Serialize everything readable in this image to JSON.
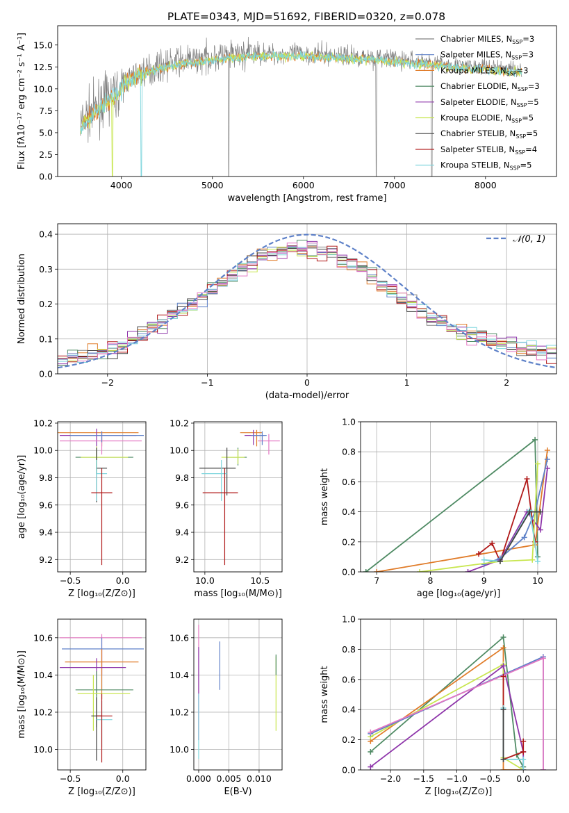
{
  "title": "PLATE=0343, MJD=51692, FIBERID=0320, z=0.078",
  "chart_data": [
    {
      "id": "spectrum",
      "type": "line",
      "xlabel": "wavelength [Angstrom, rest frame]",
      "ylabel": "Flux [fλ10⁻¹⁷ erg cm⁻² s⁻¹ A⁻¹]",
      "xlim": [
        3300,
        8780
      ],
      "ylim": [
        0,
        17.2
      ],
      "xticks": [
        "4000",
        "5000",
        "6000",
        "7000",
        "8000"
      ],
      "xtick_values": [
        4000,
        5000,
        6000,
        7000,
        8000
      ],
      "yticks": [
        "0.0",
        "2.5",
        "5.0",
        "7.5",
        "10.0",
        "12.5",
        "15.0"
      ],
      "ytick_values": [
        0,
        2.5,
        5,
        7.5,
        10,
        12.5,
        15
      ],
      "grid": false,
      "legend_position": "lower-right",
      "series": [
        {
          "name": "Chabrier MILES, N_SSP=3",
          "color": "#808080"
        },
        {
          "name": "Salpeter MILES, N_SSP=3",
          "color": "#5e81c8"
        },
        {
          "name": "Kroupa MILES, N_SSP=3",
          "color": "#e07b28"
        },
        {
          "name": "Chabrier ELODIE, N_SSP=3",
          "color": "#4e8a63"
        },
        {
          "name": "Salpeter ELODIE, N_SSP=5",
          "color": "#8e35aa"
        },
        {
          "name": "Kroupa ELODIE, N_SSP=5",
          "color": "#c8e650"
        },
        {
          "name": "Chabrier STELIB, N_SSP=5",
          "color": "#404040"
        },
        {
          "name": "Salpeter STELIB, N_SSP=4",
          "color": "#b01818"
        },
        {
          "name": "Kroupa STELIB, N_SSP=5",
          "color": "#7fd6dd"
        }
      ],
      "model_continuum": {
        "x": [
          3550,
          3650,
          3750,
          3850,
          3950,
          4050,
          4150,
          4250,
          4400,
          4600,
          4800,
          5000,
          5200,
          5400,
          5600,
          5800,
          6000,
          6200,
          6400,
          6600,
          6800,
          7000,
          7200,
          7400,
          7600,
          7800,
          8000,
          8200,
          8400
        ],
        "y": [
          6.0,
          7.0,
          8.0,
          9.0,
          9.5,
          11.0,
          11.5,
          12.0,
          12.5,
          13.0,
          13.3,
          13.6,
          13.8,
          14.0,
          14.0,
          14.0,
          14.0,
          13.9,
          13.8,
          13.7,
          13.6,
          13.4,
          13.2,
          13.0,
          12.8,
          12.6,
          12.5,
          12.3,
          12.2
        ]
      }
    },
    {
      "id": "residuals",
      "type": "bar",
      "xlabel": "(data-model)/error",
      "ylabel": "Normed distribution",
      "xlim": [
        -2.5,
        2.5
      ],
      "ylim": [
        0,
        0.43
      ],
      "xticks": [
        "−2",
        "−1",
        "0",
        "1",
        "2"
      ],
      "xtick_values": [
        -2,
        -1,
        0,
        1,
        2
      ],
      "yticks": [
        "0.0",
        "0.1",
        "0.2",
        "0.3",
        "0.4"
      ],
      "ytick_values": [
        0,
        0.1,
        0.2,
        0.3,
        0.4
      ],
      "grid": true,
      "legend_position": "top-right",
      "legend_label": "𝒩(0, 1)",
      "bin_edges_start": -2.5,
      "bin_width": 0.1,
      "histogram_envelope": [
        0.04,
        0.045,
        0.05,
        0.055,
        0.06,
        0.07,
        0.08,
        0.095,
        0.11,
        0.13,
        0.15,
        0.165,
        0.18,
        0.2,
        0.22,
        0.24,
        0.26,
        0.28,
        0.3,
        0.31,
        0.33,
        0.34,
        0.35,
        0.36,
        0.355,
        0.36,
        0.35,
        0.345,
        0.33,
        0.32,
        0.3,
        0.28,
        0.26,
        0.24,
        0.22,
        0.2,
        0.18,
        0.16,
        0.14,
        0.13,
        0.12,
        0.11,
        0.1,
        0.09,
        0.085,
        0.08,
        0.075,
        0.07,
        0.065,
        0.06
      ]
    },
    {
      "id": "age-vs-Z",
      "type": "scatter",
      "xlabel": "Z [log₁₀(Z/Z⊙)]",
      "ylabel": "age  [log₁₀(age/yr)]",
      "xlim": [
        -0.62,
        0.22
      ],
      "ylim": [
        9.11,
        10.21
      ],
      "xticks": [
        "−0.5",
        "0.0"
      ],
      "xtick_values": [
        -0.5,
        0
      ],
      "yticks": [
        "9.2",
        "9.4",
        "9.6",
        "9.8",
        "10.0",
        "10.2"
      ],
      "ytick_values": [
        9.2,
        9.4,
        9.6,
        9.8,
        10.0,
        10.2
      ],
      "grid": true,
      "points": [
        {
          "x": -0.2,
          "xerr": [
            0.45,
            0.35
          ],
          "y": 10.13,
          "yerr": [
            0.1,
            0.01
          ],
          "color": "#e07b28"
        },
        {
          "x": -0.25,
          "xerr": [
            0.35,
            0.38
          ],
          "y": 10.11,
          "yerr": [
            0.08,
            0.05
          ],
          "color": "#8e35aa"
        },
        {
          "x": -0.2,
          "xerr": [
            0.4,
            0.38
          ],
          "y": 10.07,
          "yerr": [
            0.1,
            0.07
          ],
          "color": "#e377c2"
        },
        {
          "x": -0.2,
          "xerr": [
            0.3,
            0.4
          ],
          "y": 10.11,
          "yerr": [
            0.05,
            0.03
          ],
          "color": "#5e81c8"
        },
        {
          "x": -0.25,
          "xerr": [
            0.2,
            0.35
          ],
          "y": 9.95,
          "yerr": [
            0.12,
            0.05
          ],
          "color": "#4e8a63"
        },
        {
          "x": -0.25,
          "xerr": [
            0.15,
            0.3
          ],
          "y": 9.95,
          "yerr": [
            0.1,
            0.08
          ],
          "color": "#c8e650"
        },
        {
          "x": -0.25,
          "xerr": [
            0.0,
            0.1
          ],
          "y": 9.87,
          "yerr": [
            0.25,
            0.15
          ],
          "color": "#404040"
        },
        {
          "x": -0.25,
          "xerr": [
            0.0,
            0.1
          ],
          "y": 9.83,
          "yerr": [
            0.2,
            0.1
          ],
          "color": "#7fd6dd"
        },
        {
          "x": -0.2,
          "xerr": [
            0.1,
            0.1
          ],
          "y": 9.69,
          "yerr": [
            0.53,
            0.18
          ],
          "color": "#b01818"
        }
      ]
    },
    {
      "id": "age-vs-mass",
      "type": "scatter",
      "xlabel": "mass [log₁₀(M/M⊙)]",
      "ylabel": "",
      "xlim": [
        9.9,
        10.7
      ],
      "ylim": [
        9.11,
        10.21
      ],
      "xticks": [
        "10.0",
        "10.5"
      ],
      "xtick_values": [
        10.0,
        10.5
      ],
      "yticks": [
        "9.2",
        "9.4",
        "9.6",
        "9.8",
        "10.0",
        "10.2"
      ],
      "ytick_values": [
        9.2,
        9.4,
        9.6,
        9.8,
        10.0,
        10.2
      ],
      "grid": true,
      "points": [
        {
          "x": 10.47,
          "xerr": [
            0.15,
            0.05
          ],
          "y": 10.13,
          "yerr": [
            0.1,
            0.02
          ],
          "color": "#e07b28"
        },
        {
          "x": 10.44,
          "xerr": [
            0.08,
            0.1
          ],
          "y": 10.11,
          "yerr": [
            0.07,
            0.04
          ],
          "color": "#8e35aa"
        },
        {
          "x": 10.58,
          "xerr": [
            0.1,
            0.1
          ],
          "y": 10.07,
          "yerr": [
            0.1,
            0.05
          ],
          "color": "#e377c2"
        },
        {
          "x": 10.52,
          "xerr": [
            0.1,
            0.04
          ],
          "y": 10.11,
          "yerr": [
            0.07,
            0.03
          ],
          "color": "#5e81c8"
        },
        {
          "x": 10.3,
          "xerr": [
            0.1,
            0.08
          ],
          "y": 9.95,
          "yerr": [
            0.06,
            0.07
          ],
          "color": "#4e8a63"
        },
        {
          "x": 10.3,
          "xerr": [
            0.15,
            0.06
          ],
          "y": 9.95,
          "yerr": [
            0.05,
            0.06
          ],
          "color": "#c8e650"
        },
        {
          "x": 10.2,
          "xerr": [
            0.25,
            0.08
          ],
          "y": 9.87,
          "yerr": [
            0.2,
            0.15
          ],
          "color": "#404040"
        },
        {
          "x": 10.15,
          "xerr": [
            0.18,
            0.05
          ],
          "y": 9.83,
          "yerr": [
            0.2,
            0.1
          ],
          "color": "#7fd6dd"
        },
        {
          "x": 10.18,
          "xerr": [
            0.2,
            0.12
          ],
          "y": 9.69,
          "yerr": [
            0.53,
            0.18
          ],
          "color": "#b01818"
        }
      ]
    },
    {
      "id": "mass-weight-vs-age",
      "type": "line",
      "xlabel": "age  [log₁₀(age/yr)]",
      "ylabel": "mass weight",
      "xlim": [
        6.7,
        10.35
      ],
      "ylim": [
        0,
        1.0
      ],
      "xticks": [
        "7",
        "8",
        "9",
        "10"
      ],
      "xtick_values": [
        7,
        8,
        9,
        10
      ],
      "yticks": [
        "0.0",
        "0.2",
        "0.4",
        "0.6",
        "0.8",
        "1.0"
      ],
      "ytick_values": [
        0,
        0.2,
        0.4,
        0.6,
        0.8,
        1.0
      ],
      "grid": true,
      "series": [
        {
          "color": "#4e8a63",
          "x": [
            6.8,
            9.95,
            10.0
          ],
          "y": [
            0.0,
            0.88,
            0.1
          ]
        },
        {
          "color": "#e07b28",
          "x": [
            7.0,
            9.95,
            10.18
          ],
          "y": [
            0.0,
            0.18,
            0.81
          ]
        },
        {
          "color": "#b01818",
          "x": [
            8.9,
            9.15,
            9.3,
            9.8,
            9.95
          ],
          "y": [
            0.12,
            0.19,
            0.07,
            0.62,
            0.2
          ]
        },
        {
          "color": "#8e35aa",
          "x": [
            8.7,
            9.3,
            9.8,
            10.05,
            10.18
          ],
          "y": [
            0.0,
            0.08,
            0.4,
            0.28,
            0.69
          ]
        },
        {
          "color": "#5e81c8",
          "x": [
            9.0,
            9.3,
            9.75,
            9.95,
            10.18
          ],
          "y": [
            0.05,
            0.09,
            0.23,
            0.4,
            0.75
          ]
        },
        {
          "color": "#c8e650",
          "x": [
            7.8,
            9.3,
            9.9,
            10.0
          ],
          "y": [
            0.0,
            0.07,
            0.08,
            0.72
          ]
        },
        {
          "color": "#7fd6dd",
          "x": [
            9.0,
            9.3,
            9.85,
            10.0
          ],
          "y": [
            0.08,
            0.07,
            0.41,
            0.07
          ]
        },
        {
          "color": "#404040",
          "x": [
            9.3,
            9.85,
            10.05
          ],
          "y": [
            0.07,
            0.4,
            0.4
          ]
        }
      ]
    },
    {
      "id": "mass-vs-Z",
      "type": "scatter",
      "xlabel": "Z [log₁₀(Z/Z⊙)]",
      "ylabel": "mass [log₁₀(M/M⊙)]",
      "xlim": [
        -0.62,
        0.22
      ],
      "ylim": [
        9.89,
        10.7
      ],
      "xticks": [
        "−0.5",
        "0.0"
      ],
      "xtick_values": [
        -0.5,
        0
      ],
      "yticks": [
        "10.0",
        "10.2",
        "10.4",
        "10.6"
      ],
      "ytick_values": [
        10.0,
        10.2,
        10.4,
        10.6
      ],
      "grid": true,
      "points": [
        {
          "x": -0.2,
          "xerr": [
            0.4,
            0.38
          ],
          "y": 10.6,
          "yerr": [
            0.2,
            0.02
          ],
          "color": "#e377c2"
        },
        {
          "x": -0.2,
          "xerr": [
            0.38,
            0.4
          ],
          "y": 10.54,
          "yerr": [
            0.22,
            0.06
          ],
          "color": "#5e81c8"
        },
        {
          "x": -0.2,
          "xerr": [
            0.35,
            0.35
          ],
          "y": 10.47,
          "yerr": [
            0.2,
            0.07
          ],
          "color": "#e07b28"
        },
        {
          "x": -0.25,
          "xerr": [
            0.35,
            0.28
          ],
          "y": 10.44,
          "yerr": [
            0.15,
            0.05
          ],
          "color": "#8e35aa"
        },
        {
          "x": -0.25,
          "xerr": [
            0.2,
            0.35
          ],
          "y": 10.32,
          "yerr": [
            0.2,
            0.1
          ],
          "color": "#4e8a63"
        },
        {
          "x": -0.28,
          "xerr": [
            0.15,
            0.35
          ],
          "y": 10.3,
          "yerr": [
            0.2,
            0.1
          ],
          "color": "#c8e650"
        },
        {
          "x": -0.25,
          "xerr": [
            0.05,
            0.05
          ],
          "y": 10.18,
          "yerr": [
            0.24,
            0.1
          ],
          "color": "#404040"
        },
        {
          "x": -0.2,
          "xerr": [
            0.05,
            0.1
          ],
          "y": 10.16,
          "yerr": [
            0.15,
            0.1
          ],
          "color": "#7fd6dd"
        },
        {
          "x": -0.2,
          "xerr": [
            0.05,
            0.1
          ],
          "y": 10.18,
          "yerr": [
            0.25,
            0.12
          ],
          "color": "#b01818"
        }
      ]
    },
    {
      "id": "mass-vs-EBV",
      "type": "scatter",
      "xlabel": "E(B-V)",
      "ylabel": "",
      "xlim": [
        -0.0008,
        0.0138
      ],
      "ylim": [
        9.89,
        10.7
      ],
      "xticks": [
        "0.000",
        "0.005",
        "0.010"
      ],
      "xtick_values": [
        0,
        0.005,
        0.01
      ],
      "yticks": [
        "10.0",
        "10.2",
        "10.4",
        "10.6"
      ],
      "ytick_values": [
        10.0,
        10.2,
        10.4,
        10.6
      ],
      "grid": true,
      "points": [
        {
          "x": 0.0,
          "y": 10.55,
          "yerr": [
            0.5,
            0.12
          ],
          "color": "#e377c2"
        },
        {
          "x": 0.0,
          "y": 10.35,
          "yerr": [
            0.3,
            0.2
          ],
          "color": "#8e35aa"
        },
        {
          "x": 0.0,
          "y": 10.15,
          "yerr": [
            0.2,
            0.15
          ],
          "color": "#7fd6dd"
        },
        {
          "x": 0.0035,
          "y": 10.45,
          "yerr": [
            0.13,
            0.13
          ],
          "color": "#5e81c8"
        },
        {
          "x": 0.0128,
          "y": 10.3,
          "yerr": [
            0.2,
            0.2
          ],
          "color": "#c8e650"
        },
        {
          "x": 0.0128,
          "y": 10.45,
          "yerr": [
            0.05,
            0.06
          ],
          "color": "#4e8a63"
        }
      ]
    },
    {
      "id": "mass-weight-vs-Z",
      "type": "line",
      "xlabel": "Z [log₁₀(Z/Z⊙)]",
      "ylabel": "mass weight",
      "xlim": [
        -2.45,
        0.5
      ],
      "ylim": [
        0,
        1.0
      ],
      "xticks": [
        "−2.0",
        "−1.5",
        "−1.0",
        "−0.5",
        "0.0"
      ],
      "xtick_values": [
        -2.0,
        -1.5,
        -1.0,
        -0.5,
        0.0
      ],
      "yticks": [
        "0.0",
        "0.2",
        "0.4",
        "0.6",
        "0.8",
        "1.0"
      ],
      "ytick_values": [
        0,
        0.2,
        0.4,
        0.6,
        0.8,
        1.0
      ],
      "grid": true,
      "series": [
        {
          "color": "#4e8a63",
          "x": [
            -2.3,
            -0.3,
            -0.1,
            0.0
          ],
          "y": [
            0.12,
            0.88,
            0.1,
            0.02
          ]
        },
        {
          "color": "#e07b28",
          "x": [
            -2.3,
            -0.3,
            -0.3,
            0.0
          ],
          "y": [
            0.19,
            0.81,
            0.0,
            0.0
          ]
        },
        {
          "color": "#c8e650",
          "x": [
            -2.3,
            -0.3,
            -0.3,
            0.0
          ],
          "y": [
            0.22,
            0.7,
            0.08,
            0.0
          ]
        },
        {
          "color": "#8e35aa",
          "x": [
            -2.3,
            -0.3,
            0.0,
            0.0
          ],
          "y": [
            0.02,
            0.69,
            0.12,
            0.0
          ]
        },
        {
          "color": "#5e81c8",
          "x": [
            -2.3,
            0.3,
            0.3
          ],
          "y": [
            0.24,
            0.75,
            0.0
          ]
        },
        {
          "color": "#e377c2",
          "x": [
            -2.3,
            0.3,
            0.3
          ],
          "y": [
            0.25,
            0.74,
            0.0
          ]
        },
        {
          "color": "#b01818",
          "x": [
            -0.3,
            -0.3,
            0.0,
            0.0
          ],
          "y": [
            0.62,
            0.07,
            0.12,
            0.19
          ]
        },
        {
          "color": "#7fd6dd",
          "x": [
            -0.3,
            -0.3,
            0.0,
            0.0
          ],
          "y": [
            0.41,
            0.07,
            0.07,
            0.0
          ]
        },
        {
          "color": "#404040",
          "x": [
            -0.3,
            -0.3
          ],
          "y": [
            0.4,
            0.07
          ]
        }
      ]
    }
  ]
}
